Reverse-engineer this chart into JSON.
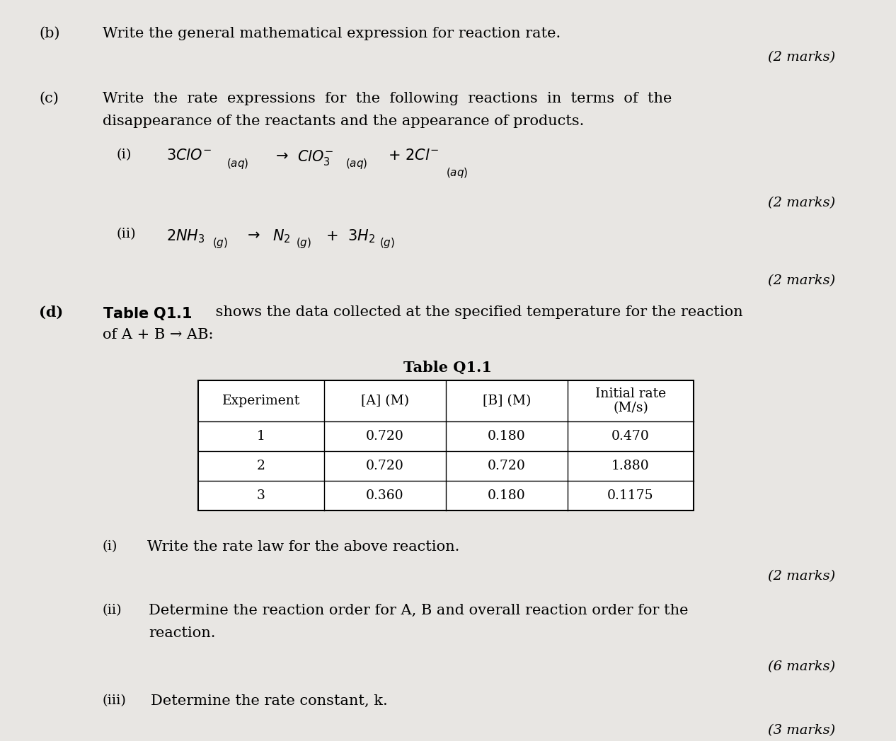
{
  "bg_color": "#e8e6e3",
  "figsize": [
    12.66,
    10.48
  ],
  "dpi": 100,
  "table_headers": [
    "Experiment",
    "[A] (M)",
    "[B] (M)",
    "Initial rate\n(M/s)"
  ],
  "table_data": [
    [
      "1",
      "0.720",
      "0.180",
      "0.470"
    ],
    [
      "2",
      "0.720",
      "0.720",
      "1.880"
    ],
    [
      "3",
      "0.360",
      "0.180",
      "0.1175"
    ]
  ],
  "table_title": "Table Q1.1"
}
